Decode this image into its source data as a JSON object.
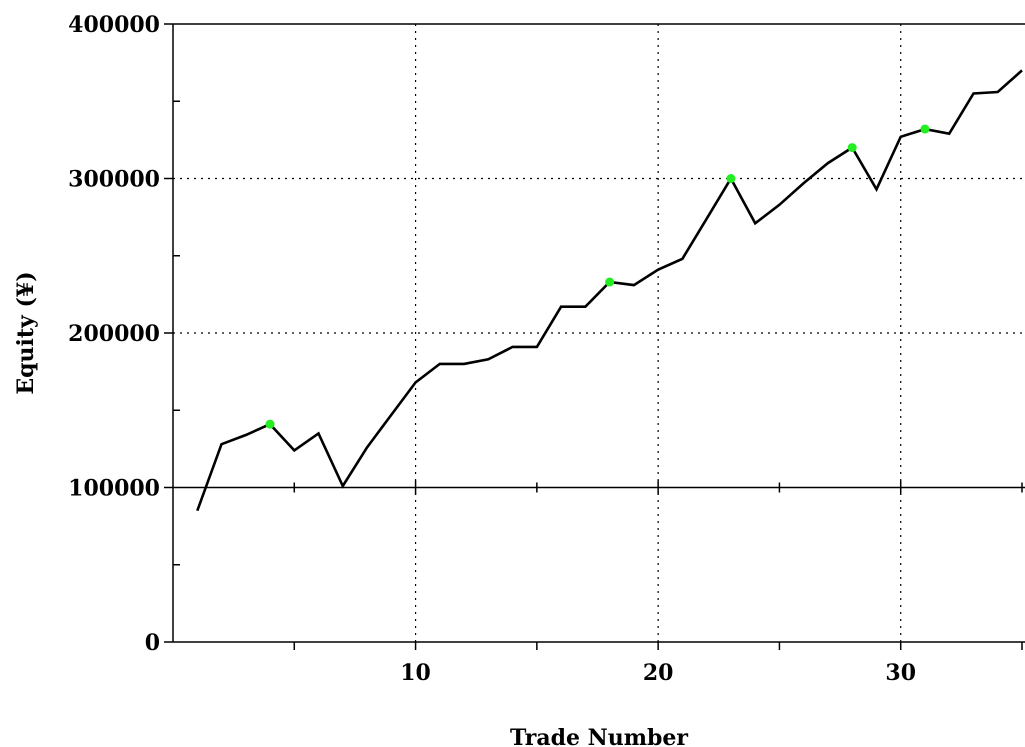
{
  "chart_data": {
    "type": "line",
    "title": "",
    "xlabel": "Trade Number",
    "ylabel": "Equity (¥)",
    "xlim": [
      0,
      35
    ],
    "ylim": [
      0,
      400000
    ],
    "x_ticks": [
      10,
      20,
      30
    ],
    "x_tick_labels": [
      "10",
      "20",
      "30"
    ],
    "y_ticks": [
      0,
      100000,
      200000,
      300000,
      400000
    ],
    "y_tick_labels": [
      "0",
      "100000",
      "200000",
      "300000",
      "400000"
    ],
    "grid": "dotted",
    "legend": "none",
    "colors": {
      "line": "#000000",
      "highlight": "#22ee22",
      "background": "#ffffff"
    },
    "series": [
      {
        "x": [
          1,
          2,
          3,
          4,
          5,
          6,
          7,
          8,
          9,
          10,
          11,
          12,
          13,
          14,
          15,
          16,
          17,
          18,
          19,
          20,
          21,
          22,
          23,
          24,
          25,
          26,
          27,
          28,
          29,
          30,
          31,
          32,
          33,
          34,
          35
        ],
        "values": [
          85000,
          128000,
          134000,
          141000,
          124000,
          135000,
          101000,
          126000,
          147000,
          168000,
          180000,
          180000,
          183000,
          191000,
          191000,
          217000,
          217000,
          233000,
          231000,
          241000,
          248000,
          274000,
          300000,
          271000,
          283000,
          297000,
          310000,
          320000,
          293000,
          327000,
          332000,
          329000,
          355000,
          356000,
          370000
        ]
      }
    ],
    "highlight_points": [
      {
        "x": 4,
        "y": 141000
      },
      {
        "x": 18,
        "y": 233000
      },
      {
        "x": 23,
        "y": 300000
      },
      {
        "x": 28,
        "y": 320000
      },
      {
        "x": 31,
        "y": 332000
      }
    ]
  }
}
